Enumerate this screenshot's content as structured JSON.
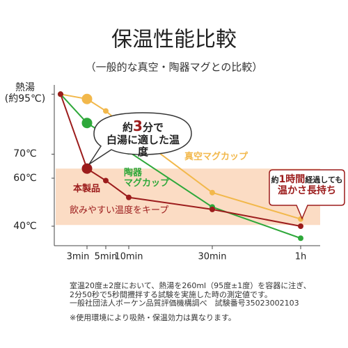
{
  "chart_data": {
    "type": "line",
    "title": "保温性能比較",
    "subtitle": "（一般的な真空・陶器マグとの比較）",
    "categories": [
      null,
      "3min",
      "5min",
      "10min",
      "30min",
      "1h"
    ],
    "series": [
      {
        "name": "真空マグカップ",
        "color": "#f2b84b",
        "values": [
          95,
          93,
          88,
          80,
          54,
          43
        ]
      },
      {
        "name": "陶器\nマグカップ",
        "color": "#2ea83a",
        "values": [
          95,
          83,
          78,
          71,
          48,
          35
        ]
      },
      {
        "name": "本製品",
        "color": "#9c1c1c",
        "values": [
          95,
          64,
          59,
          52,
          47,
          40
        ]
      }
    ],
    "ylim": [
      32,
      97
    ],
    "yticks": [
      {
        "value": 95,
        "label": "熱湯\n(約95℃)"
      },
      {
        "value": 70,
        "label": "70℃"
      },
      {
        "value": 60,
        "label": "60℃"
      },
      {
        "value": 40,
        "label": "40℃"
      }
    ],
    "band": [
      40.5,
      64
    ],
    "band_color": "#fbdcc4",
    "band_label": "飲みやすい温度をキープ",
    "bubble": {
      "prefix": "約",
      "number": "3",
      "suffix": "分で",
      "line2": "白湯に適した温度"
    },
    "callout": {
      "prefix": "約",
      "number": "1時間",
      "suffix": "経過しても",
      "line2": "温かさ長持ち"
    },
    "footnotes": [
      "室温20度±2度において、熱湯を260ml（95度±1度）を容器に注ぎ、",
      "2分50秒で5秒間攪拌する試験を実施した時の測定値です。",
      "一般社団法人ボーケン品質評価機構調べ　試験番号35023002103",
      "※使用環境により吸熱・保温効力は異なります。"
    ]
  }
}
